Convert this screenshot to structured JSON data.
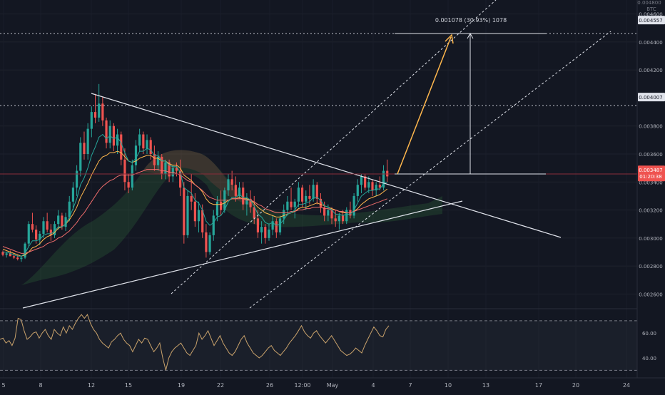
{
  "chart_data": {
    "type": "candlestick",
    "title": "",
    "currency": "BTC",
    "price_axis": {
      "ticks": [
        "0.004600",
        "0.004400",
        "0.004200",
        "0.003800",
        "0.003600",
        "0.003400",
        "0.003200",
        "0.003000",
        "0.002800",
        "0.002600"
      ],
      "ylim": [
        0.0025,
        0.0047
      ],
      "top_label": "0.004800"
    },
    "x_axis": {
      "labels": [
        "5",
        "8",
        "12",
        "15",
        "19",
        "22",
        "26",
        "12:00",
        "May",
        "4",
        "7",
        "10",
        "13",
        "17",
        "20",
        "24"
      ]
    },
    "price_markers": [
      {
        "value": "0.004557",
        "style": "highlight"
      },
      {
        "value": "0.004007",
        "style": "highlight"
      },
      {
        "value": "0.003487",
        "style": "current",
        "sub": "01:20:38"
      }
    ],
    "measure_label": "0.001078 (30.93%) 1078",
    "rsi": {
      "ticks": [
        "60.00",
        "40.00"
      ],
      "ylim": [
        25,
        78
      ],
      "upper": 70,
      "lower": 30,
      "values": [
        55,
        56,
        52,
        54,
        50,
        56,
        72,
        71,
        62,
        55,
        57,
        60,
        61,
        56,
        60,
        63,
        58,
        55,
        63,
        60,
        58,
        65,
        60,
        66,
        63,
        68,
        72,
        75,
        72,
        75,
        68,
        63,
        60,
        55,
        52,
        50,
        48,
        53,
        55,
        58,
        60,
        55,
        52,
        50,
        45,
        50,
        55,
        52,
        56,
        55,
        50,
        45,
        48,
        52,
        40,
        30,
        40,
        45,
        48,
        50,
        52,
        48,
        44,
        42,
        46,
        50,
        60,
        55,
        58,
        62,
        56,
        50,
        54,
        58,
        52,
        48,
        44,
        42,
        45,
        50,
        55,
        58,
        52,
        48,
        44,
        42,
        40,
        42,
        45,
        48,
        50,
        46,
        44,
        42,
        45,
        48,
        52,
        55,
        58,
        62,
        66,
        61,
        58,
        56,
        60,
        62,
        58,
        55,
        52,
        55,
        58,
        54,
        50,
        46,
        44,
        42,
        43,
        45,
        48,
        46,
        44,
        50,
        55,
        60,
        65,
        62,
        58,
        57,
        63,
        66
      ]
    },
    "candles": [
      [
        0.0029,
        0.00291,
        0.00287,
        0.00288
      ],
      [
        0.00288,
        0.0029,
        0.00286,
        0.00289
      ],
      [
        0.00289,
        0.00291,
        0.00287,
        0.00287
      ],
      [
        0.00287,
        0.00289,
        0.00285,
        0.00286
      ],
      [
        0.00286,
        0.00288,
        0.00284,
        0.00285
      ],
      [
        0.00285,
        0.00287,
        0.00283,
        0.00286
      ],
      [
        0.00286,
        0.00297,
        0.00285,
        0.00296
      ],
      [
        0.00296,
        0.00312,
        0.00294,
        0.0031
      ],
      [
        0.0031,
        0.00318,
        0.00304,
        0.00306
      ],
      [
        0.00306,
        0.00309,
        0.00296,
        0.00299
      ],
      [
        0.00299,
        0.00305,
        0.00295,
        0.00303
      ],
      [
        0.00303,
        0.00315,
        0.003,
        0.00312
      ],
      [
        0.00312,
        0.00318,
        0.00304,
        0.00306
      ],
      [
        0.00306,
        0.0031,
        0.00298,
        0.00302
      ],
      [
        0.00302,
        0.00312,
        0.003,
        0.0031
      ],
      [
        0.0031,
        0.0032,
        0.00306,
        0.00316
      ],
      [
        0.00316,
        0.00318,
        0.00306,
        0.00308
      ],
      [
        0.00308,
        0.00318,
        0.00305,
        0.00315
      ],
      [
        0.00315,
        0.0033,
        0.00312,
        0.00326
      ],
      [
        0.00326,
        0.0034,
        0.0032,
        0.00336
      ],
      [
        0.00336,
        0.00352,
        0.0033,
        0.00348
      ],
      [
        0.00348,
        0.00372,
        0.00344,
        0.00368
      ],
      [
        0.00368,
        0.00376,
        0.00356,
        0.0036
      ],
      [
        0.0036,
        0.00382,
        0.00356,
        0.00378
      ],
      [
        0.00378,
        0.00394,
        0.00372,
        0.0039
      ],
      [
        0.0039,
        0.00403,
        0.00382,
        0.00386
      ],
      [
        0.00386,
        0.0041,
        0.00383,
        0.00396
      ],
      [
        0.00396,
        0.00401,
        0.0038,
        0.00384
      ],
      [
        0.00384,
        0.00386,
        0.00364,
        0.00368
      ],
      [
        0.00368,
        0.00384,
        0.00364,
        0.0038
      ],
      [
        0.0038,
        0.00382,
        0.00362,
        0.00366
      ],
      [
        0.00366,
        0.00378,
        0.0036,
        0.00374
      ],
      [
        0.00374,
        0.00376,
        0.00352,
        0.00356
      ],
      [
        0.00356,
        0.00364,
        0.00334,
        0.0034
      ],
      [
        0.0034,
        0.00346,
        0.00332,
        0.00336
      ],
      [
        0.00336,
        0.00356,
        0.00334,
        0.00352
      ],
      [
        0.00352,
        0.0037,
        0.00348,
        0.00366
      ],
      [
        0.00366,
        0.00378,
        0.00362,
        0.00374
      ],
      [
        0.00374,
        0.00376,
        0.0036,
        0.00364
      ],
      [
        0.00364,
        0.00374,
        0.0036,
        0.0037
      ],
      [
        0.0037,
        0.00372,
        0.00356,
        0.0036
      ],
      [
        0.0036,
        0.00366,
        0.00348,
        0.00352
      ],
      [
        0.00352,
        0.00362,
        0.00348,
        0.00358
      ],
      [
        0.00358,
        0.0036,
        0.00342,
        0.00346
      ],
      [
        0.00346,
        0.00356,
        0.00342,
        0.00354
      ],
      [
        0.00354,
        0.00356,
        0.0034,
        0.00344
      ],
      [
        0.00344,
        0.00352,
        0.0034,
        0.0035
      ],
      [
        0.0035,
        0.00354,
        0.00344,
        0.00348
      ],
      [
        0.00348,
        0.00356,
        0.0033,
        0.00336
      ],
      [
        0.00336,
        0.0034,
        0.00296,
        0.00302
      ],
      [
        0.00302,
        0.00334,
        0.003,
        0.0033
      ],
      [
        0.0033,
        0.00346,
        0.0032,
        0.00326
      ],
      [
        0.00326,
        0.00332,
        0.00308,
        0.00312
      ],
      [
        0.00312,
        0.00326,
        0.00304,
        0.0032
      ],
      [
        0.0032,
        0.00324,
        0.003,
        0.00304
      ],
      [
        0.00304,
        0.0031,
        0.00286,
        0.0029
      ],
      [
        0.0029,
        0.00304,
        0.00288,
        0.00302
      ],
      [
        0.00302,
        0.0032,
        0.00298,
        0.00316
      ],
      [
        0.00316,
        0.0033,
        0.00312,
        0.00326
      ],
      [
        0.00326,
        0.00334,
        0.00316,
        0.0032
      ],
      [
        0.0032,
        0.00336,
        0.00318,
        0.00334
      ],
      [
        0.00334,
        0.00346,
        0.0033,
        0.00342
      ],
      [
        0.00342,
        0.00348,
        0.00334,
        0.00338
      ],
      [
        0.00338,
        0.00344,
        0.00326,
        0.0033
      ],
      [
        0.0033,
        0.0034,
        0.00328,
        0.00336
      ],
      [
        0.00336,
        0.0034,
        0.0032,
        0.00324
      ],
      [
        0.00324,
        0.00332,
        0.00316,
        0.00328
      ],
      [
        0.00328,
        0.00334,
        0.00318,
        0.00322
      ],
      [
        0.00322,
        0.0033,
        0.0031,
        0.00314
      ],
      [
        0.00314,
        0.0032,
        0.003,
        0.00304
      ],
      [
        0.00304,
        0.00312,
        0.00296,
        0.00308
      ],
      [
        0.00308,
        0.0031,
        0.00296,
        0.003
      ],
      [
        0.003,
        0.0031,
        0.00298,
        0.00306
      ],
      [
        0.00306,
        0.00316,
        0.00302,
        0.00312
      ],
      [
        0.00312,
        0.00314,
        0.003,
        0.00304
      ],
      [
        0.00304,
        0.00316,
        0.00302,
        0.00314
      ],
      [
        0.00314,
        0.00324,
        0.0031,
        0.0032
      ],
      [
        0.0032,
        0.0033,
        0.00316,
        0.00326
      ],
      [
        0.00326,
        0.00336,
        0.0032,
        0.00322
      ],
      [
        0.00322,
        0.00328,
        0.00314,
        0.00326
      ],
      [
        0.00326,
        0.0034,
        0.00322,
        0.00336
      ],
      [
        0.00336,
        0.00338,
        0.00322,
        0.00326
      ],
      [
        0.00326,
        0.00334,
        0.0032,
        0.0033
      ],
      [
        0.0033,
        0.00338,
        0.00324,
        0.00328
      ],
      [
        0.00328,
        0.00342,
        0.00326,
        0.00338
      ],
      [
        0.00338,
        0.0034,
        0.00324,
        0.00328
      ],
      [
        0.00328,
        0.00332,
        0.00318,
        0.00322
      ],
      [
        0.00322,
        0.00326,
        0.00312,
        0.00316
      ],
      [
        0.00316,
        0.00324,
        0.00312,
        0.0032
      ],
      [
        0.0032,
        0.00322,
        0.0031,
        0.00314
      ],
      [
        0.00314,
        0.0032,
        0.00308,
        0.00312
      ],
      [
        0.00312,
        0.00318,
        0.00306,
        0.00316
      ],
      [
        0.00316,
        0.0032,
        0.0031,
        0.00312
      ],
      [
        0.00312,
        0.00322,
        0.0031,
        0.0032
      ],
      [
        0.0032,
        0.00326,
        0.00314,
        0.00316
      ],
      [
        0.00316,
        0.00332,
        0.00314,
        0.0033
      ],
      [
        0.0033,
        0.00342,
        0.00326,
        0.00338
      ],
      [
        0.00338,
        0.00346,
        0.00332,
        0.00344
      ],
      [
        0.00344,
        0.00346,
        0.00334,
        0.00336
      ],
      [
        0.00336,
        0.00344,
        0.00332,
        0.0034
      ],
      [
        0.0034,
        0.00342,
        0.0033,
        0.00334
      ],
      [
        0.00334,
        0.0034,
        0.0033,
        0.00338
      ],
      [
        0.00338,
        0.00344,
        0.00334,
        0.00336
      ],
      [
        0.00336,
        0.00352,
        0.00334,
        0.00348
      ],
      [
        0.00348,
        0.00356,
        0.0034,
        0.00344
      ]
    ],
    "series": [
      {
        "name": "",
        "type": "line",
        "color": "#ffb74d",
        "values": [
          0.00292,
          0.00291,
          0.0029,
          0.00289,
          0.00288,
          0.00287,
          0.00288,
          0.0029,
          0.00293,
          0.00294,
          0.00296,
          0.00299,
          0.00301,
          0.00302,
          0.00304,
          0.00307,
          0.00308,
          0.0031,
          0.00313,
          0.00317,
          0.00322,
          0.00329,
          0.00334,
          0.00339,
          0.00345,
          0.0035,
          0.00355,
          0.00358,
          0.00359,
          0.00361,
          0.00361,
          0.00362,
          0.00361,
          0.00358,
          0.00355,
          0.00354,
          0.00355,
          0.00357,
          0.00358,
          0.00359,
          0.00359,
          0.00357,
          0.00357,
          0.00355,
          0.00355,
          0.00353,
          0.00352,
          0.00352,
          0.0035,
          0.00345,
          0.00343,
          0.00341,
          0.00338,
          0.00336,
          0.00333,
          0.00328,
          0.00325,
          0.00324,
          0.00324,
          0.00324,
          0.00325,
          0.00327,
          0.00328,
          0.00328,
          0.00329,
          0.00328,
          0.00328,
          0.00327,
          0.00325,
          0.00322,
          0.0032,
          0.00318,
          0.00317,
          0.00316,
          0.00315,
          0.00315,
          0.00316,
          0.00317,
          0.00318,
          0.00319,
          0.00321,
          0.00322,
          0.00322,
          0.00323,
          0.00324,
          0.00325,
          0.00324,
          0.00323,
          0.00322,
          0.00321,
          0.0032,
          0.00319,
          0.00318,
          0.00318,
          0.00318,
          0.00319,
          0.00321,
          0.00324,
          0.00326,
          0.00328,
          0.00329,
          0.0033,
          0.00331,
          0.00333,
          0.00335
        ]
      },
      {
        "name": "",
        "type": "line",
        "color": "#ef6c6c",
        "values": [
          0.00294,
          0.00293,
          0.00292,
          0.00291,
          0.0029,
          0.00289,
          0.00289,
          0.0029,
          0.00291,
          0.00292,
          0.00293,
          0.00294,
          0.00296,
          0.00297,
          0.00298,
          0.003,
          0.00301,
          0.00303,
          0.00305,
          0.00308,
          0.00311,
          0.00315,
          0.00318,
          0.00322,
          0.00326,
          0.0033,
          0.00334,
          0.00337,
          0.00339,
          0.00341,
          0.00342,
          0.00344,
          0.00345,
          0.00345,
          0.00345,
          0.00345,
          0.00346,
          0.00347,
          0.00348,
          0.00349,
          0.00349,
          0.00349,
          0.00349,
          0.00348,
          0.00348,
          0.00347,
          0.00347,
          0.00346,
          0.00345,
          0.00343,
          0.00341,
          0.0034,
          0.00338,
          0.00336,
          0.00334,
          0.00331,
          0.00329,
          0.00328,
          0.00327,
          0.00327,
          0.00327,
          0.00327,
          0.00328,
          0.00328,
          0.00328,
          0.00328,
          0.00327,
          0.00327,
          0.00326,
          0.00324,
          0.00323,
          0.00321,
          0.0032,
          0.00319,
          0.00318,
          0.00318,
          0.00318,
          0.00318,
          0.00319,
          0.00319,
          0.0032,
          0.0032,
          0.00321,
          0.00321,
          0.00322,
          0.00322,
          0.00322,
          0.00321,
          0.00321,
          0.0032,
          0.0032,
          0.00319,
          0.00319,
          0.00318,
          0.00318,
          0.00319,
          0.0032,
          0.00321,
          0.00322,
          0.00323,
          0.00324,
          0.00325,
          0.00326,
          0.00327,
          0.00328
        ]
      },
      {
        "name": "",
        "type": "line",
        "color": "#26a69a",
        "values": [
          0.0029,
          0.0029,
          0.00289,
          0.00288,
          0.00287,
          0.00287,
          0.00289,
          0.00294,
          0.00298,
          0.00298,
          0.00299,
          0.00302,
          0.00303,
          0.00303,
          0.00305,
          0.00308,
          0.00308,
          0.0031,
          0.00315,
          0.00321,
          0.00328,
          0.00338,
          0.00343,
          0.0035,
          0.00359,
          0.00365,
          0.00372,
          0.00374,
          0.00371,
          0.00373,
          0.00371,
          0.00372,
          0.00368,
          0.00361,
          0.00355,
          0.00354,
          0.00357,
          0.00362,
          0.00362,
          0.00364,
          0.00363,
          0.00359,
          0.00359,
          0.00355,
          0.00355,
          0.00352,
          0.00351,
          0.00351,
          0.00347,
          0.00336,
          0.00334,
          0.00332,
          0.00327,
          0.00325,
          0.0032,
          0.00312,
          0.00309,
          0.00311,
          0.00315,
          0.00316,
          0.0032,
          0.00326,
          0.00329,
          0.00329,
          0.00331,
          0.00329,
          0.00329,
          0.00327,
          0.00323,
          0.00317,
          0.00315,
          0.00311,
          0.0031,
          0.00311,
          0.00309,
          0.0031,
          0.00313,
          0.00317,
          0.00318,
          0.0032,
          0.00324,
          0.00324,
          0.00325,
          0.00326,
          0.00329,
          0.00329,
          0.00327,
          0.00323,
          0.00322,
          0.0032,
          0.00317,
          0.00317,
          0.00316,
          0.00317,
          0.00317,
          0.0032,
          0.00325,
          0.0033,
          0.00332,
          0.00334,
          0.00334,
          0.00335,
          0.00335,
          0.00339,
          0.0034
        ]
      }
    ]
  }
}
